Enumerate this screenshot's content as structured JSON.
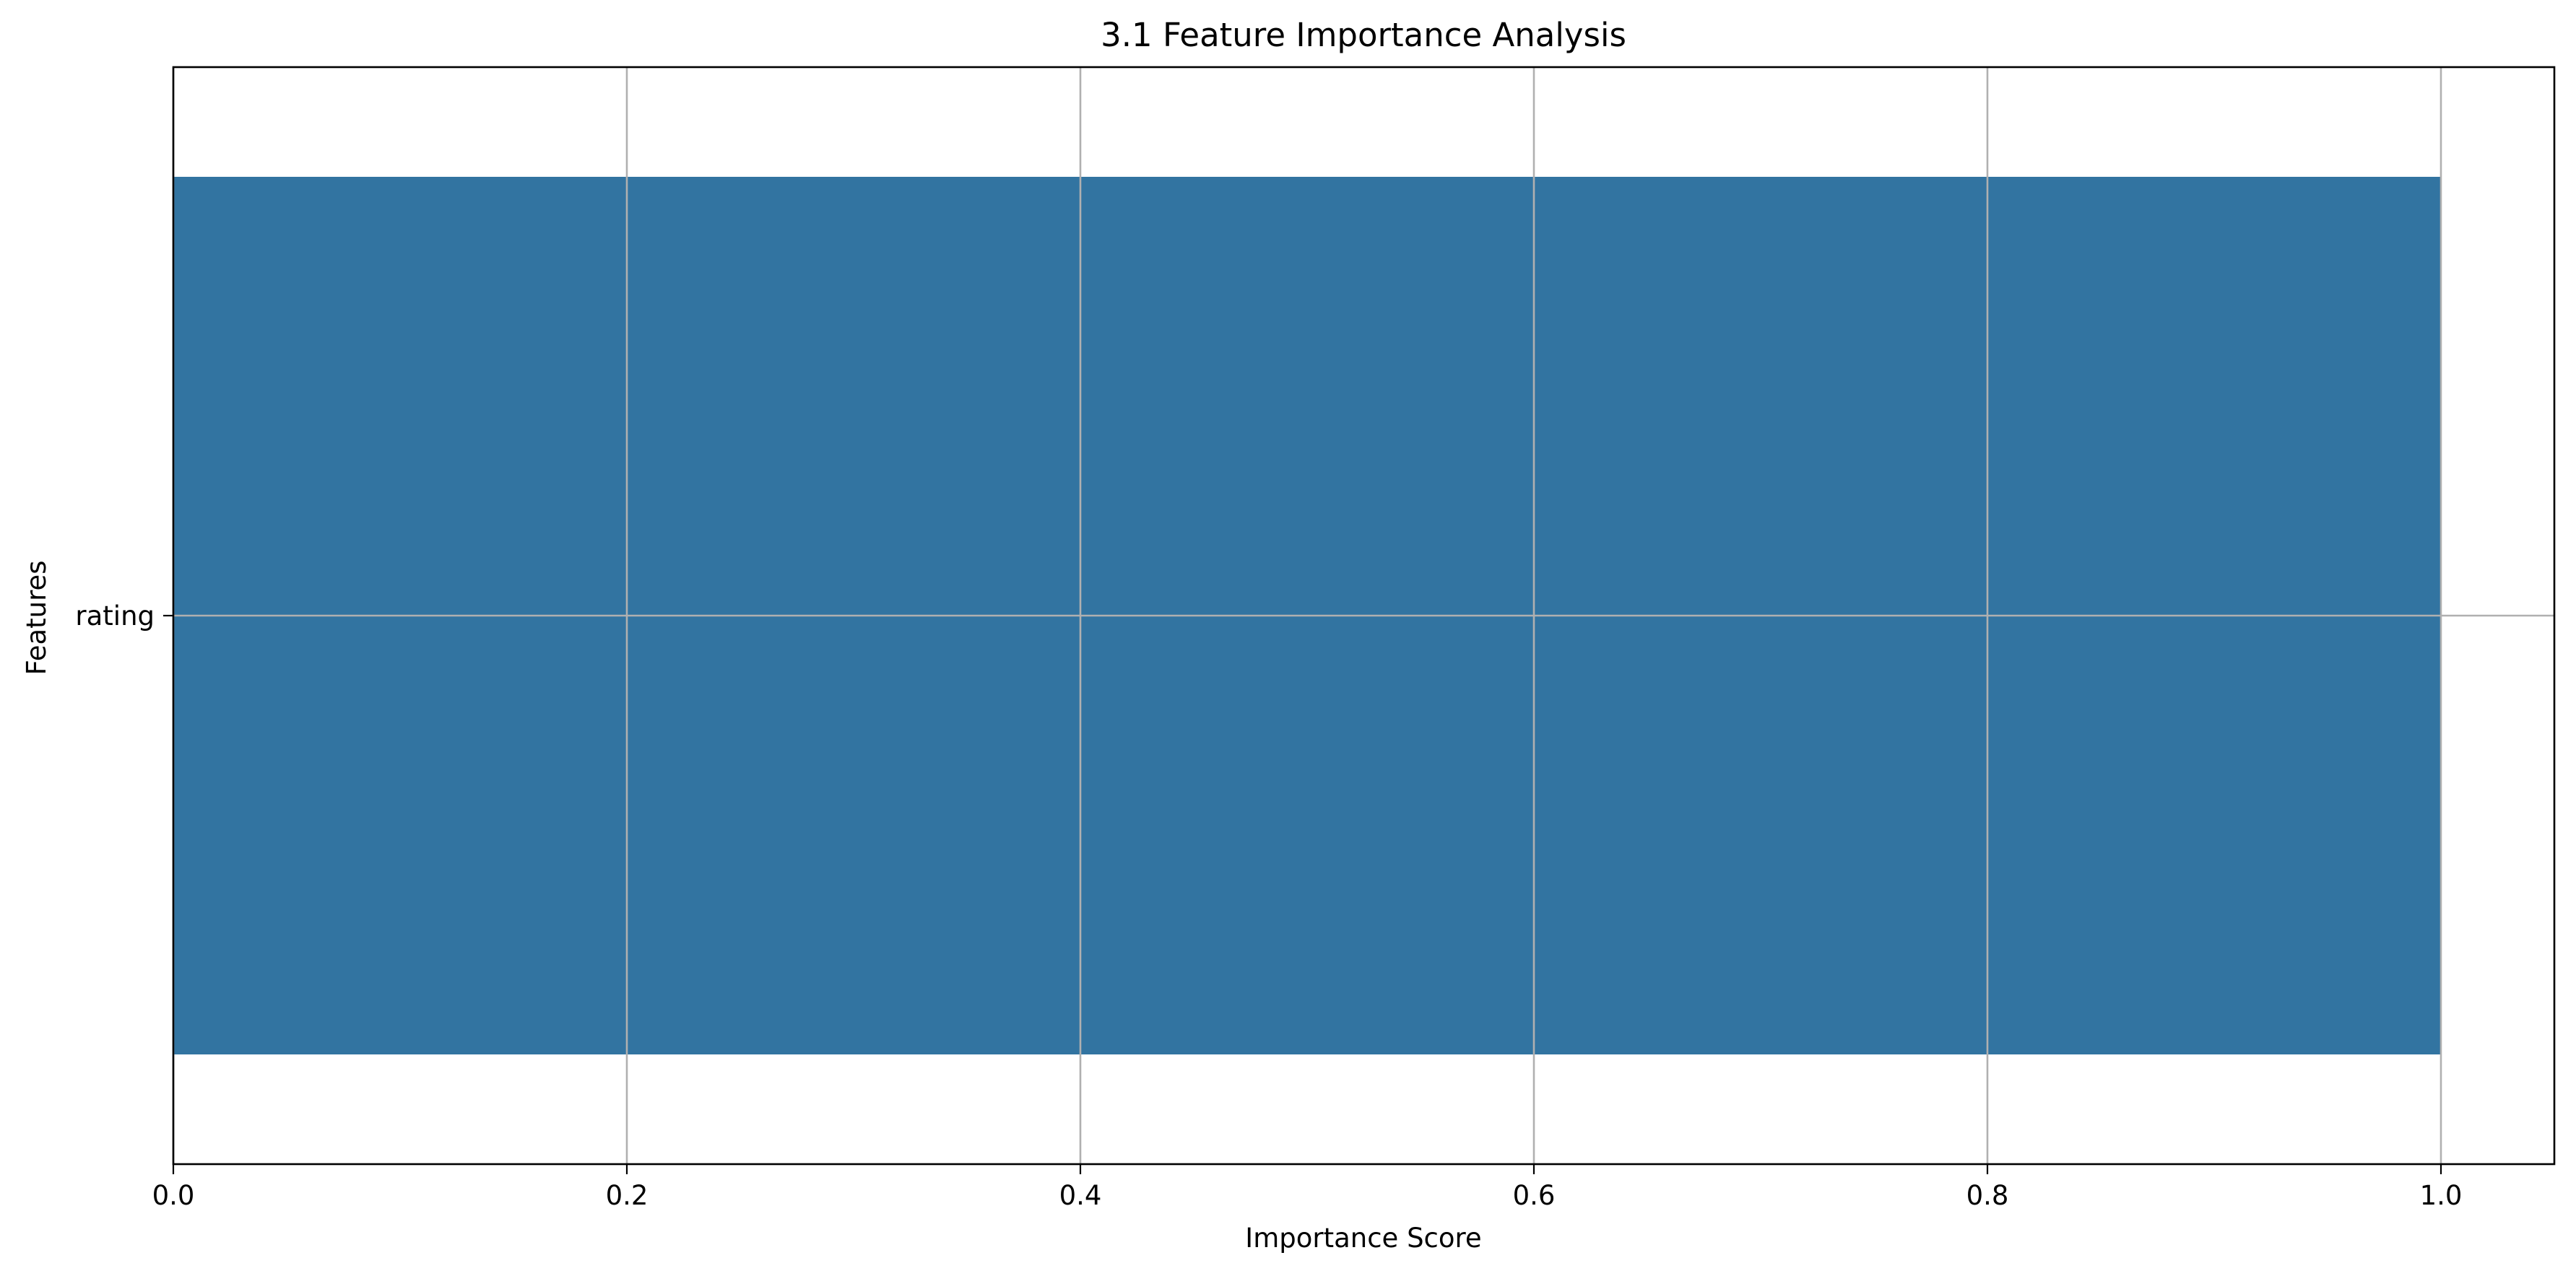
{
  "chart_data": {
    "type": "bar",
    "orientation": "horizontal",
    "title": "3.1 Feature Importance Analysis",
    "xlabel": "Importance Score",
    "ylabel": "Features",
    "categories": [
      "rating"
    ],
    "values": [
      1.0
    ],
    "xlim": [
      0,
      1.05
    ],
    "xticks": [
      0.0,
      0.2,
      0.4,
      0.6,
      0.8,
      1.0
    ],
    "xtick_labels": [
      "0.0",
      "0.2",
      "0.4",
      "0.6",
      "0.8",
      "1.0"
    ],
    "grid": true,
    "bar_color": "#3274a1",
    "grid_color": "#b0b0b0"
  }
}
